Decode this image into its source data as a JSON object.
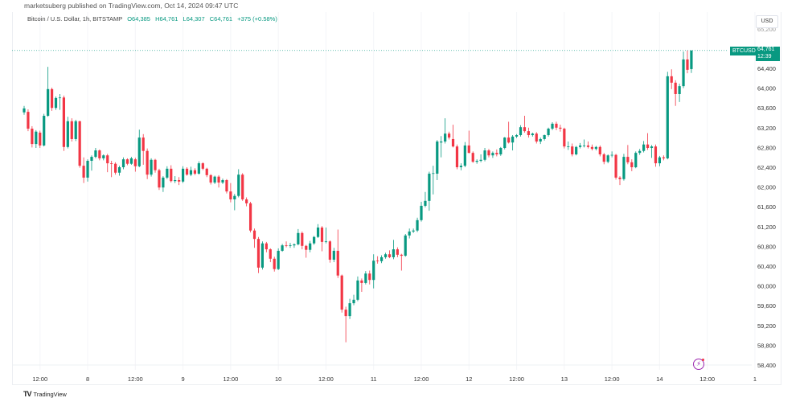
{
  "header": {
    "published": "marketsuberg published on TradingView.com, Oct 14, 2024 09:47 UTC"
  },
  "legend": {
    "symbol": "Bitcoin / U.S. Dollar, 1h, BITSTAMP",
    "open": "O64,385",
    "high": "H64,761",
    "low": "L64,307",
    "close": "C64,761",
    "change": "+375 (+0.58%)"
  },
  "price_axis": {
    "currency": "USD",
    "symbol_badge": "BTCUSD",
    "last_price": "64,761",
    "countdown": "12:39"
  },
  "footer": {
    "brand": "TradingView"
  },
  "colors": {
    "up": "#089981",
    "down": "#f23645",
    "accent": "#089981"
  },
  "icons": {
    "brand": "tradingview-logo-icon",
    "alert": "lightning-icon"
  },
  "chart_data": {
    "type": "candlestick",
    "interval": "1h",
    "ylim": [
      58400,
      65200
    ],
    "y_ticks": [
      "65,200",
      "64,800",
      "64,400",
      "64,000",
      "63,600",
      "63,200",
      "62,800",
      "62,400",
      "62,000",
      "61,600",
      "61,200",
      "60,800",
      "60,400",
      "60,000",
      "59,600",
      "59,200",
      "58,800",
      "58,400"
    ],
    "y_tick_values": [
      65200,
      64800,
      64400,
      64000,
      63600,
      63200,
      62800,
      62400,
      62000,
      61600,
      61200,
      60800,
      60400,
      60000,
      59600,
      59200,
      58800,
      58400
    ],
    "x_ticks": [
      "12:00",
      "8",
      "12:00",
      "9",
      "12:00",
      "10",
      "12:00",
      "11",
      "12:00",
      "12",
      "12:00",
      "13",
      "12:00",
      "14",
      "12:00",
      "1"
    ],
    "first_candle": "Oct 7 08:00",
    "last_price": 64761,
    "ohlc": [
      [
        63510,
        63640,
        63460,
        63590
      ],
      [
        63520,
        63570,
        63130,
        63180
      ],
      [
        63180,
        63230,
        62800,
        62870
      ],
      [
        62870,
        63150,
        62790,
        63120
      ],
      [
        63100,
        63140,
        62790,
        62840
      ],
      [
        62840,
        63480,
        62820,
        63440
      ],
      [
        63440,
        64430,
        63420,
        63980
      ],
      [
        63980,
        64010,
        63540,
        63600
      ],
      [
        63600,
        63830,
        63560,
        63800
      ],
      [
        63800,
        63880,
        63560,
        63810
      ],
      [
        63810,
        63850,
        62730,
        62810
      ],
      [
        62810,
        63420,
        62780,
        63330
      ],
      [
        63330,
        63390,
        62920,
        62970
      ],
      [
        62970,
        63360,
        62930,
        63330
      ],
      [
        63330,
        63340,
        62390,
        62430
      ],
      [
        62430,
        62600,
        62080,
        62190
      ],
      [
        62190,
        62560,
        62110,
        62530
      ],
      [
        62530,
        62640,
        62330,
        62610
      ],
      [
        62610,
        62790,
        62580,
        62740
      ],
      [
        62740,
        62760,
        62540,
        62580
      ],
      [
        62580,
        62660,
        62540,
        62640
      ],
      [
        62640,
        62670,
        62300,
        62480
      ],
      [
        62480,
        62530,
        62200,
        62470
      ],
      [
        62470,
        62500,
        62250,
        62290
      ],
      [
        62290,
        62430,
        62230,
        62400
      ],
      [
        62400,
        62600,
        62360,
        62560
      ],
      [
        62560,
        62580,
        62440,
        62470
      ],
      [
        62470,
        62610,
        62450,
        62580
      ],
      [
        62560,
        62590,
        62310,
        62420
      ],
      [
        62420,
        63160,
        62400,
        63000
      ],
      [
        63000,
        63070,
        62450,
        62730
      ],
      [
        62730,
        62780,
        62160,
        62250
      ],
      [
        62250,
        62580,
        62210,
        62550
      ],
      [
        62550,
        62570,
        62290,
        62340
      ],
      [
        62340,
        62370,
        61940,
        61990
      ],
      [
        61990,
        62220,
        61900,
        62190
      ],
      [
        62190,
        62420,
        62160,
        62370
      ],
      [
        62370,
        62440,
        62090,
        62120
      ],
      [
        62120,
        62220,
        62080,
        62140
      ],
      [
        62140,
        62200,
        62040,
        62110
      ],
      [
        62110,
        62420,
        62080,
        62370
      ],
      [
        62370,
        62400,
        62230,
        62250
      ],
      [
        62250,
        62410,
        62220,
        62340
      ],
      [
        62340,
        62380,
        62240,
        62270
      ],
      [
        62270,
        62520,
        62250,
        62480
      ],
      [
        62480,
        62500,
        62340,
        62370
      ],
      [
        62370,
        62390,
        62200,
        62240
      ],
      [
        62240,
        62260,
        62050,
        62090
      ],
      [
        62090,
        62230,
        62060,
        62210
      ],
      [
        62210,
        62240,
        61990,
        62090
      ],
      [
        62090,
        62170,
        62060,
        62140
      ],
      [
        62140,
        62160,
        61870,
        61910
      ],
      [
        61910,
        62080,
        61690,
        61750
      ],
      [
        61750,
        61860,
        61530,
        61820
      ],
      [
        61820,
        62360,
        61790,
        62250
      ],
      [
        62250,
        62280,
        61720,
        61750
      ],
      [
        61750,
        61790,
        61610,
        61670
      ],
      [
        61670,
        61700,
        61080,
        61120
      ],
      [
        61120,
        61160,
        60770,
        60950
      ],
      [
        60950,
        60990,
        60260,
        60370
      ],
      [
        60370,
        60900,
        60330,
        60860
      ],
      [
        60860,
        60890,
        60680,
        60740
      ],
      [
        60740,
        60760,
        60480,
        60550
      ],
      [
        60550,
        60590,
        60290,
        60340
      ],
      [
        60340,
        60760,
        60320,
        60710
      ],
      [
        60710,
        60850,
        60690,
        60820
      ],
      [
        60820,
        60900,
        60780,
        60810
      ],
      [
        60810,
        60870,
        60770,
        60820
      ],
      [
        60820,
        60860,
        60770,
        60840
      ],
      [
        60840,
        61150,
        60820,
        61070
      ],
      [
        61070,
        61100,
        60740,
        60810
      ],
      [
        60810,
        60830,
        60570,
        60730
      ],
      [
        60730,
        60910,
        60680,
        60860
      ],
      [
        60860,
        61010,
        60830,
        60990
      ],
      [
        60990,
        61250,
        60970,
        61180
      ],
      [
        61180,
        61210,
        60700,
        60890
      ],
      [
        60890,
        61180,
        60860,
        60900
      ],
      [
        60900,
        60920,
        60470,
        60530
      ],
      [
        60530,
        60770,
        60480,
        60710
      ],
      [
        60710,
        61140,
        60160,
        60210
      ],
      [
        60210,
        60230,
        59460,
        59520
      ],
      [
        59520,
        59580,
        58860,
        59390
      ],
      [
        59390,
        59740,
        59330,
        59650
      ],
      [
        59650,
        59820,
        59610,
        59720
      ],
      [
        59720,
        60190,
        59690,
        60110
      ],
      [
        60110,
        60150,
        59880,
        60060
      ],
      [
        60060,
        60300,
        60030,
        60250
      ],
      [
        60250,
        60310,
        60030,
        60120
      ],
      [
        60120,
        60640,
        59950,
        60510
      ],
      [
        60510,
        60600,
        60450,
        60500
      ],
      [
        60500,
        60620,
        60460,
        60580
      ],
      [
        60580,
        60670,
        60550,
        60640
      ],
      [
        60640,
        60720,
        60560,
        60580
      ],
      [
        60580,
        60930,
        60540,
        60740
      ],
      [
        60740,
        60780,
        60580,
        60630
      ],
      [
        60630,
        60650,
        60310,
        60610
      ],
      [
        60610,
        61050,
        60590,
        61020
      ],
      [
        61020,
        61160,
        60960,
        61100
      ],
      [
        61100,
        61160,
        61070,
        61120
      ],
      [
        61120,
        61380,
        61090,
        61330
      ],
      [
        61330,
        61700,
        61300,
        61620
      ],
      [
        61620,
        61900,
        61590,
        61720
      ],
      [
        61720,
        62310,
        61520,
        62270
      ],
      [
        62270,
        62430,
        61850,
        62280
      ],
      [
        62270,
        62950,
        62140,
        62920
      ],
      [
        62900,
        63030,
        62600,
        62920
      ],
      [
        62920,
        63390,
        62880,
        63080
      ],
      [
        63080,
        63120,
        62960,
        63000
      ],
      [
        62970,
        63260,
        62800,
        62820
      ],
      [
        62820,
        62860,
        62360,
        62400
      ],
      [
        62400,
        62480,
        62340,
        62430
      ],
      [
        62430,
        62910,
        62400,
        62840
      ],
      [
        62840,
        63140,
        62680,
        62690
      ],
      [
        62690,
        62720,
        62490,
        62510
      ],
      [
        62510,
        62560,
        62470,
        62530
      ],
      [
        62530,
        62660,
        62500,
        62550
      ],
      [
        62550,
        62790,
        62520,
        62740
      ],
      [
        62740,
        62770,
        62600,
        62640
      ],
      [
        62640,
        62720,
        62590,
        62690
      ],
      [
        62690,
        62760,
        62620,
        62660
      ],
      [
        62660,
        62810,
        62630,
        62790
      ],
      [
        62790,
        63010,
        62760,
        63000
      ],
      [
        63000,
        63320,
        62880,
        62900
      ],
      [
        62900,
        63050,
        62740,
        63020
      ],
      [
        63020,
        63070,
        62990,
        63050
      ],
      [
        63050,
        63250,
        63020,
        63210
      ],
      [
        63210,
        63440,
        63100,
        63130
      ],
      [
        63130,
        63200,
        63000,
        63050
      ],
      [
        63050,
        63100,
        63020,
        63080
      ],
      [
        63080,
        63110,
        62880,
        62920
      ],
      [
        62920,
        63000,
        62870,
        62970
      ],
      [
        62970,
        63060,
        62940,
        63050
      ],
      [
        63050,
        63200,
        63020,
        63180
      ],
      [
        63180,
        63310,
        63150,
        63280
      ],
      [
        63280,
        63320,
        63150,
        63200
      ],
      [
        63200,
        63260,
        63120,
        63180
      ],
      [
        63180,
        63200,
        62780,
        62820
      ],
      [
        62820,
        62920,
        62750,
        62820
      ],
      [
        62820,
        62880,
        62620,
        62660
      ],
      [
        62660,
        62830,
        62640,
        62810
      ],
      [
        62810,
        62890,
        62780,
        62840
      ],
      [
        62840,
        62960,
        62800,
        62840
      ],
      [
        62840,
        62920,
        62780,
        62810
      ],
      [
        62810,
        62860,
        62740,
        62770
      ],
      [
        62770,
        62830,
        62740,
        62810
      ],
      [
        62810,
        62840,
        62620,
        62660
      ],
      [
        62660,
        62690,
        62460,
        62510
      ],
      [
        62510,
        62660,
        62480,
        62640
      ],
      [
        62640,
        62720,
        62600,
        62650
      ],
      [
        62650,
        62670,
        62150,
        62190
      ],
      [
        62190,
        62220,
        62040,
        62160
      ],
      [
        62160,
        62670,
        62130,
        62610
      ],
      [
        62610,
        62850,
        62460,
        62500
      ],
      [
        62500,
        62560,
        62320,
        62400
      ],
      [
        62400,
        62720,
        62380,
        62690
      ],
      [
        62690,
        62770,
        62650,
        62730
      ],
      [
        62730,
        62930,
        62700,
        62860
      ],
      [
        62860,
        63090,
        62750,
        62790
      ],
      [
        62790,
        62850,
        62590,
        62820
      ],
      [
        62820,
        62860,
        62410,
        62480
      ],
      [
        62480,
        62630,
        62420,
        62600
      ],
      [
        62600,
        62640,
        62540,
        62580
      ],
      [
        62580,
        64330,
        62560,
        64240
      ],
      [
        64240,
        64380,
        63980,
        64110
      ],
      [
        64110,
        64160,
        63640,
        63880
      ],
      [
        63880,
        64090,
        63720,
        64040
      ],
      [
        64040,
        64740,
        64000,
        64580
      ],
      [
        64580,
        64760,
        64300,
        64370
      ],
      [
        64385,
        64761,
        64307,
        64761
      ]
    ]
  }
}
